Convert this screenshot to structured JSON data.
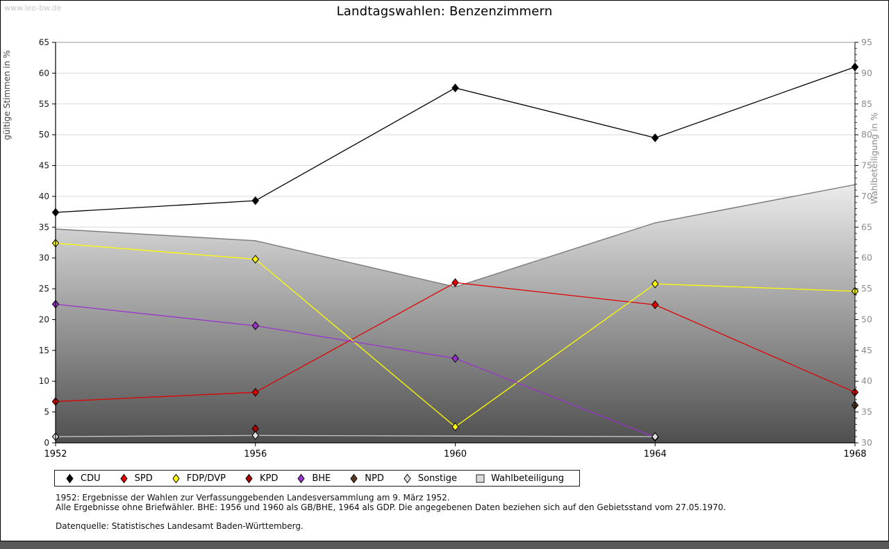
{
  "page": {
    "watermark": "www.leo-bw.de",
    "title": "Landtagswahlen: Benzenzimmern",
    "footnotes": [
      "1952: Ergebnisse der Wahlen zur Verfassunggebenden Landesversammlung am 9. März 1952.",
      "Alle Ergebnisse ohne Briefwähler. BHE: 1956 und 1960 als GB/BHE, 1964 als GDP. Die angegebenen Daten beziehen sich auf den Gebietsstand vom 27.05.1970.",
      "Datenquelle: Statistisches Landesamt Baden-Württemberg."
    ]
  },
  "chart_data": {
    "type": "line",
    "title": "Landtagswahlen: Benzenzimmern",
    "x": [
      1952,
      1956,
      1960,
      1964,
      1968
    ],
    "left_axis": {
      "label": "gültige Stimmen in %",
      "min": 0,
      "max": 65,
      "step": 5
    },
    "right_axis": {
      "label": "Wahlbeteiligung in %",
      "min": 30,
      "max": 95,
      "step": 5,
      "minor_step": 1
    },
    "grid": true,
    "legend_position": "bottom",
    "colors": {
      "grid": "#d9d9d9",
      "area_outline": "#7f7f7f",
      "area_top": "#f0f0f0",
      "area_bottom": "#4f4f4f"
    },
    "series": [
      {
        "name": "CDU",
        "color": "#000000",
        "axis": "left",
        "type": "line",
        "values": [
          37.4,
          39.3,
          57.6,
          49.5,
          61.0
        ]
      },
      {
        "name": "SPD",
        "color": "#e10000",
        "axis": "left",
        "type": "line",
        "values": [
          6.7,
          8.2,
          26.0,
          22.4,
          8.2
        ]
      },
      {
        "name": "FDP/DVP",
        "color": "#ffff00",
        "axis": "left",
        "type": "line",
        "values": [
          32.4,
          29.8,
          2.6,
          25.8,
          24.6
        ]
      },
      {
        "name": "KPD",
        "color": "#aa0000",
        "axis": "left",
        "type": "line",
        "values": [
          null,
          2.3,
          null,
          null,
          null
        ]
      },
      {
        "name": "BHE",
        "color": "#9933cc",
        "axis": "left",
        "type": "line",
        "values": [
          22.5,
          19.0,
          13.7,
          0.9,
          null
        ]
      },
      {
        "name": "NPD",
        "color": "#5c3a21",
        "axis": "left",
        "type": "line",
        "values": [
          null,
          null,
          null,
          null,
          6.1
        ]
      },
      {
        "name": "Sonstige",
        "color": "#c8c8c8",
        "marker_fill": "#e0e0e0",
        "axis": "left",
        "type": "line",
        "values": [
          1.0,
          1.2,
          null,
          1.0,
          null
        ]
      },
      {
        "name": "Wahlbeteiligung",
        "color": "#7f7f7f",
        "marker_fill": "#d9d9d9",
        "axis": "right",
        "type": "area",
        "values": [
          64.7,
          62.8,
          55.3,
          65.7,
          71.9
        ]
      }
    ]
  }
}
